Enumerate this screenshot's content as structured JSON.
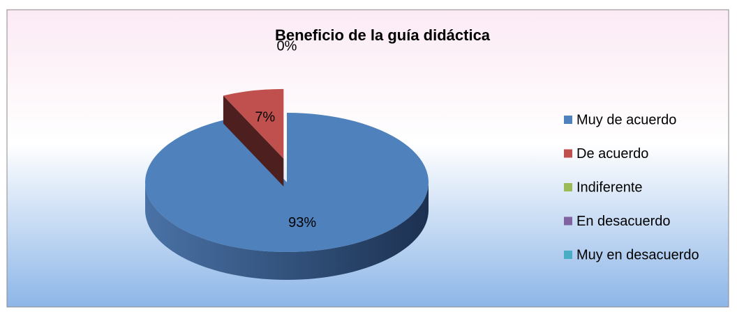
{
  "chart_data": {
    "type": "pie",
    "title": "Beneficio de la guía didáctica",
    "categories": [
      "Muy de acuerdo",
      "De acuerdo",
      "Indiferente",
      "En desacuerdo",
      "Muy en desacuerdo"
    ],
    "values": [
      93,
      7,
      0,
      0,
      0
    ],
    "value_labels": [
      "93%",
      "7%",
      "0%",
      null,
      null
    ],
    "colors": [
      "#4f81bd",
      "#c0504d",
      "#9bbb59",
      "#8064a2",
      "#4bacc6"
    ],
    "legend": "right"
  }
}
